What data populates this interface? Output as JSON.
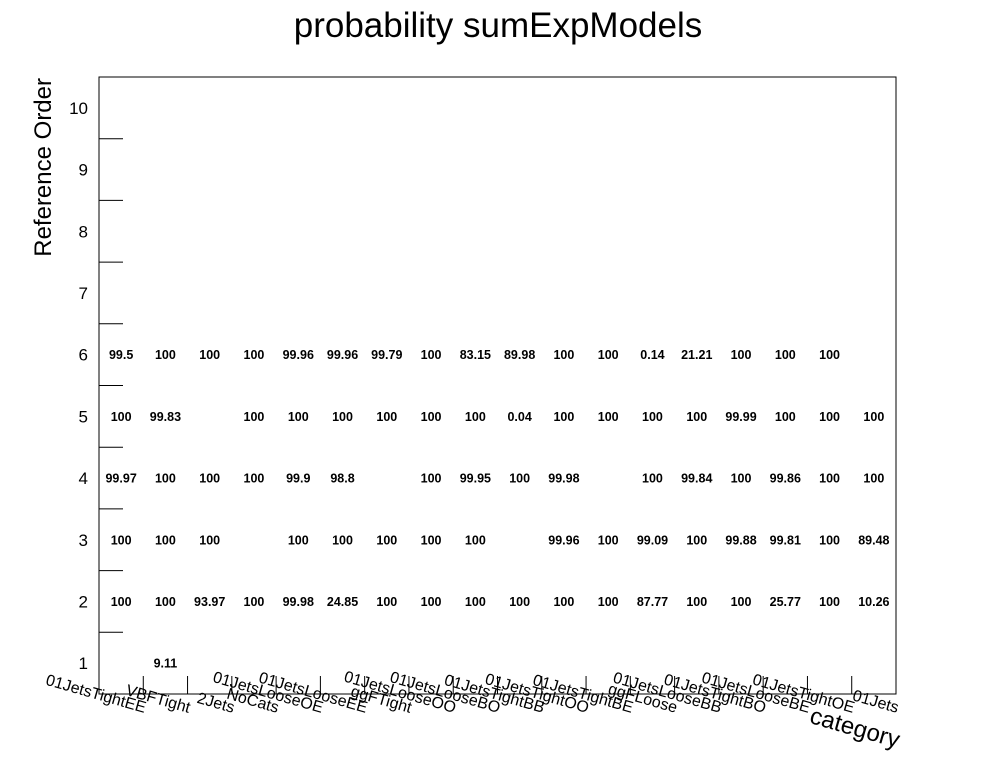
{
  "chart_data": {
    "type": "table",
    "title": "probability sumExpModels",
    "xlabel": "category",
    "ylabel": "Reference Order",
    "ylim": [
      0.5,
      10.5
    ],
    "yticks": [
      "1",
      "2",
      "3",
      "4",
      "5",
      "6",
      "7",
      "8",
      "9",
      "10"
    ],
    "categories": [
      "01JetsTightEE",
      "VBFTight",
      "2Jets",
      "NoCats",
      "01JetsLooseOE",
      "01JetsLooseEE",
      "ggFTight",
      "01JetsLooseOO",
      "01JetsLooseBO",
      "01JetsTightBB",
      "01JetsTightOO",
      "01JetsTightBE",
      "ggFLoose",
      "01JetsLooseBB",
      "01JetsTightBO",
      "01JetsLooseBE",
      "01JetsTightOE",
      "01Jets"
    ],
    "cells": [
      {
        "x": 0,
        "y": 2,
        "label": "100"
      },
      {
        "x": 0,
        "y": 3,
        "label": "100"
      },
      {
        "x": 0,
        "y": 4,
        "label": "99.97"
      },
      {
        "x": 0,
        "y": 5,
        "label": "100"
      },
      {
        "x": 0,
        "y": 6,
        "label": "99.5"
      },
      {
        "x": 1,
        "y": 1,
        "label": "9.11"
      },
      {
        "x": 1,
        "y": 2,
        "label": "100"
      },
      {
        "x": 1,
        "y": 3,
        "label": "100"
      },
      {
        "x": 1,
        "y": 4,
        "label": "100"
      },
      {
        "x": 1,
        "y": 5,
        "label": "99.83"
      },
      {
        "x": 1,
        "y": 6,
        "label": "100"
      },
      {
        "x": 2,
        "y": 2,
        "label": "93.97"
      },
      {
        "x": 2,
        "y": 3,
        "label": "100"
      },
      {
        "x": 2,
        "y": 4,
        "label": "100"
      },
      {
        "x": 2,
        "y": 6,
        "label": "100"
      },
      {
        "x": 3,
        "y": 2,
        "label": "100"
      },
      {
        "x": 3,
        "y": 4,
        "label": "100"
      },
      {
        "x": 3,
        "y": 5,
        "label": "100"
      },
      {
        "x": 3,
        "y": 6,
        "label": "100"
      },
      {
        "x": 4,
        "y": 2,
        "label": "99.98"
      },
      {
        "x": 4,
        "y": 3,
        "label": "100"
      },
      {
        "x": 4,
        "y": 4,
        "label": "99.9"
      },
      {
        "x": 4,
        "y": 5,
        "label": "100"
      },
      {
        "x": 4,
        "y": 6,
        "label": "99.96"
      },
      {
        "x": 5,
        "y": 2,
        "label": "24.85"
      },
      {
        "x": 5,
        "y": 3,
        "label": "100"
      },
      {
        "x": 5,
        "y": 4,
        "label": "98.8"
      },
      {
        "x": 5,
        "y": 5,
        "label": "100"
      },
      {
        "x": 5,
        "y": 6,
        "label": "99.96"
      },
      {
        "x": 6,
        "y": 2,
        "label": "100"
      },
      {
        "x": 6,
        "y": 3,
        "label": "100"
      },
      {
        "x": 6,
        "y": 5,
        "label": "100"
      },
      {
        "x": 6,
        "y": 6,
        "label": "99.79"
      },
      {
        "x": 7,
        "y": 2,
        "label": "100"
      },
      {
        "x": 7,
        "y": 3,
        "label": "100"
      },
      {
        "x": 7,
        "y": 4,
        "label": "100"
      },
      {
        "x": 7,
        "y": 5,
        "label": "100"
      },
      {
        "x": 7,
        "y": 6,
        "label": "100"
      },
      {
        "x": 8,
        "y": 2,
        "label": "100"
      },
      {
        "x": 8,
        "y": 3,
        "label": "100"
      },
      {
        "x": 8,
        "y": 4,
        "label": "99.95"
      },
      {
        "x": 8,
        "y": 5,
        "label": "100"
      },
      {
        "x": 8,
        "y": 6,
        "label": "83.15"
      },
      {
        "x": 9,
        "y": 2,
        "label": "100"
      },
      {
        "x": 9,
        "y": 4,
        "label": "100"
      },
      {
        "x": 9,
        "y": 5,
        "label": "0.04"
      },
      {
        "x": 9,
        "y": 6,
        "label": "89.98"
      },
      {
        "x": 10,
        "y": 2,
        "label": "100"
      },
      {
        "x": 10,
        "y": 3,
        "label": "99.96"
      },
      {
        "x": 10,
        "y": 4,
        "label": "99.98"
      },
      {
        "x": 10,
        "y": 5,
        "label": "100"
      },
      {
        "x": 10,
        "y": 6,
        "label": "100"
      },
      {
        "x": 11,
        "y": 2,
        "label": "100"
      },
      {
        "x": 11,
        "y": 3,
        "label": "100"
      },
      {
        "x": 11,
        "y": 5,
        "label": "100"
      },
      {
        "x": 11,
        "y": 6,
        "label": "100"
      },
      {
        "x": 12,
        "y": 2,
        "label": "87.77"
      },
      {
        "x": 12,
        "y": 3,
        "label": "99.09"
      },
      {
        "x": 12,
        "y": 4,
        "label": "100"
      },
      {
        "x": 12,
        "y": 5,
        "label": "100"
      },
      {
        "x": 12,
        "y": 6,
        "label": "0.14"
      },
      {
        "x": 13,
        "y": 2,
        "label": "100"
      },
      {
        "x": 13,
        "y": 3,
        "label": "100"
      },
      {
        "x": 13,
        "y": 4,
        "label": "99.84"
      },
      {
        "x": 13,
        "y": 5,
        "label": "100"
      },
      {
        "x": 13,
        "y": 6,
        "label": "21.21"
      },
      {
        "x": 14,
        "y": 2,
        "label": "100"
      },
      {
        "x": 14,
        "y": 3,
        "label": "99.88"
      },
      {
        "x": 14,
        "y": 4,
        "label": "100"
      },
      {
        "x": 14,
        "y": 5,
        "label": "99.99"
      },
      {
        "x": 14,
        "y": 6,
        "label": "100"
      },
      {
        "x": 15,
        "y": 2,
        "label": "25.77"
      },
      {
        "x": 15,
        "y": 3,
        "label": "99.81"
      },
      {
        "x": 15,
        "y": 4,
        "label": "99.86"
      },
      {
        "x": 15,
        "y": 5,
        "label": "100"
      },
      {
        "x": 15,
        "y": 6,
        "label": "100"
      },
      {
        "x": 16,
        "y": 2,
        "label": "100"
      },
      {
        "x": 16,
        "y": 3,
        "label": "100"
      },
      {
        "x": 16,
        "y": 4,
        "label": "100"
      },
      {
        "x": 16,
        "y": 5,
        "label": "100"
      },
      {
        "x": 16,
        "y": 6,
        "label": "100"
      },
      {
        "x": 17,
        "y": 2,
        "label": "10.26"
      },
      {
        "x": 17,
        "y": 3,
        "label": "89.48"
      },
      {
        "x": 17,
        "y": 4,
        "label": "100"
      },
      {
        "x": 17,
        "y": 5,
        "label": "100"
      }
    ],
    "grid": false,
    "legend": "none"
  }
}
